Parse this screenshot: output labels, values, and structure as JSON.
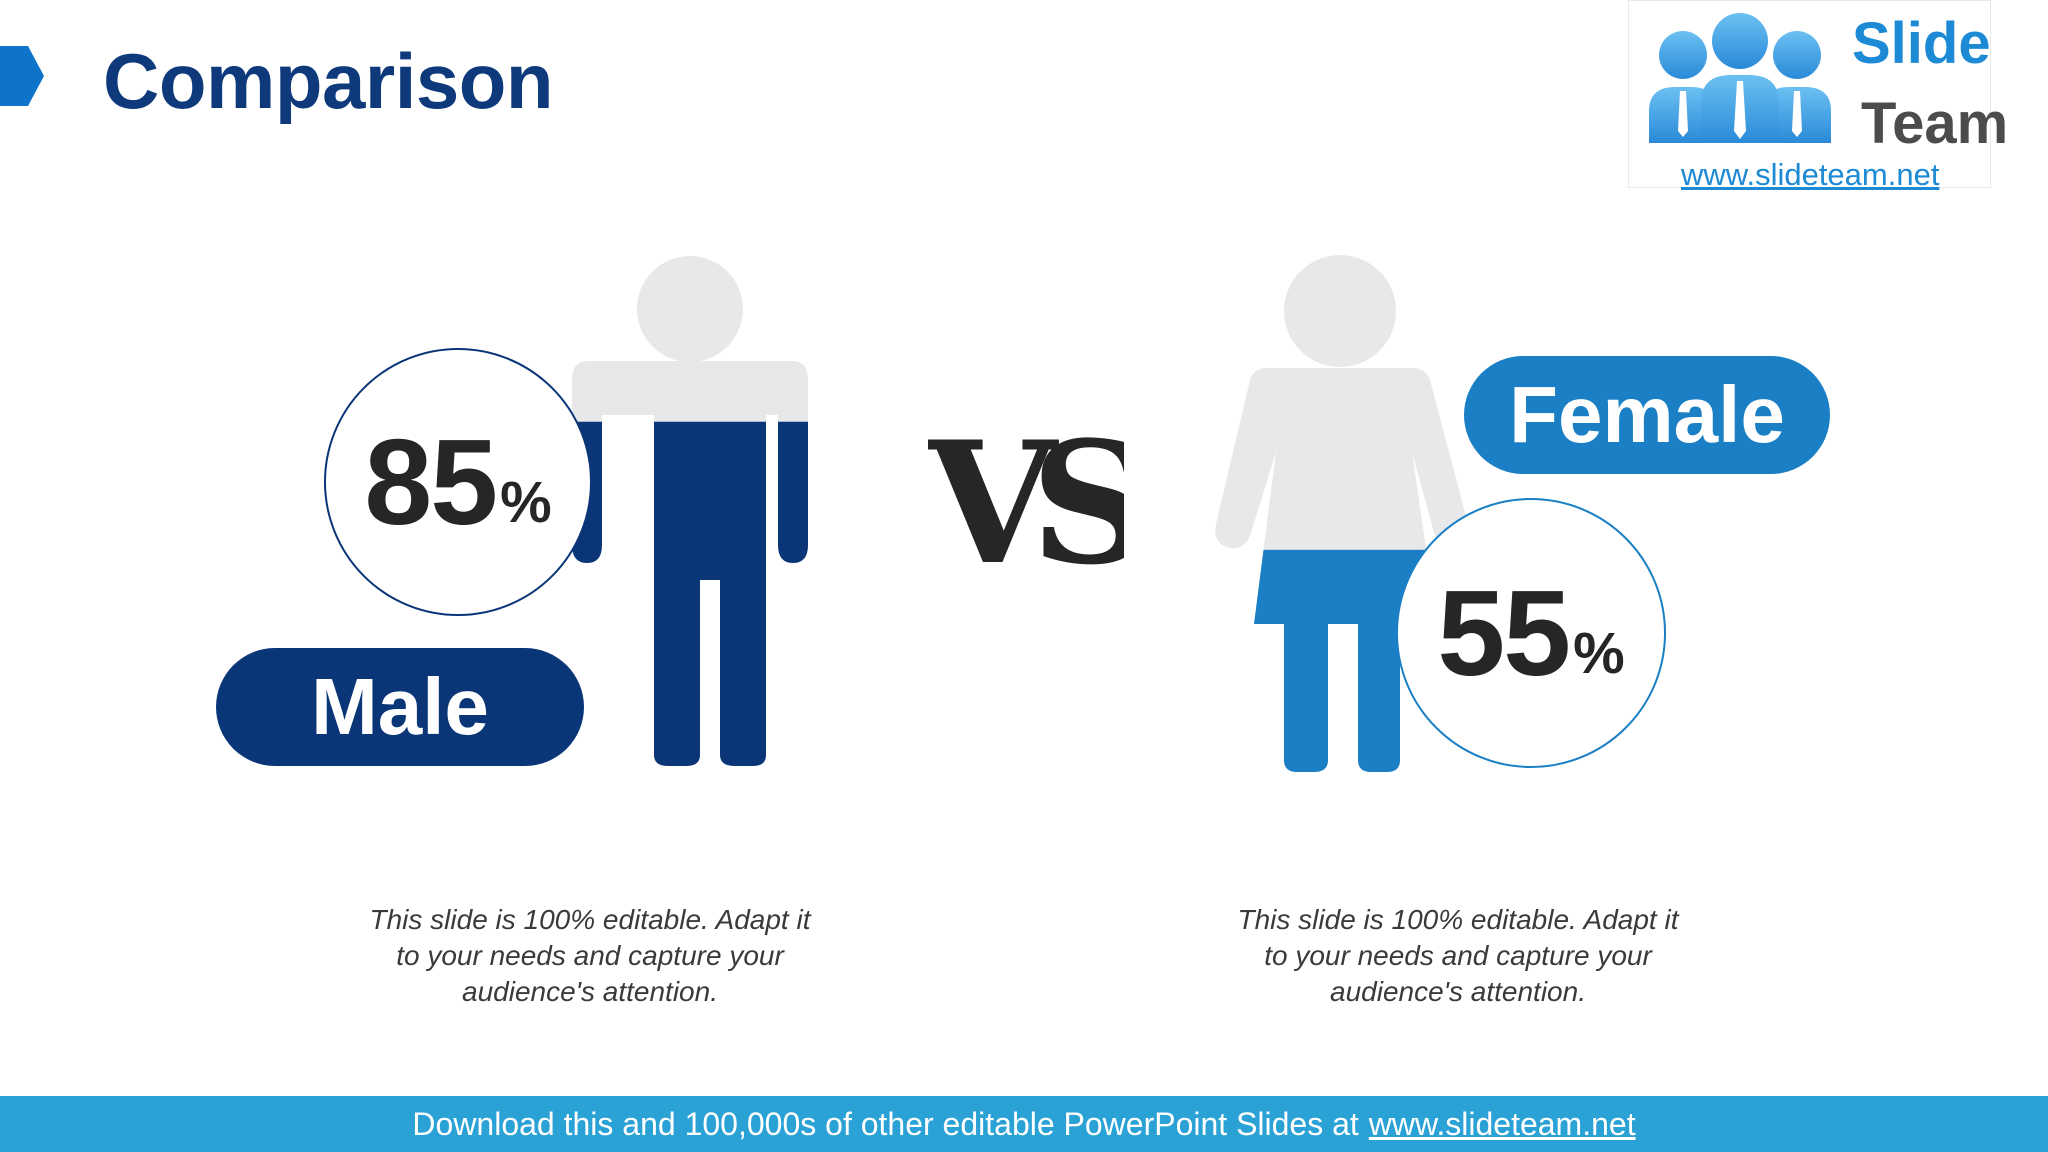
{
  "slide": {
    "title": "Comparison",
    "vs_label": "VS"
  },
  "logo": {
    "word1": "Slide",
    "word2": "Team",
    "url": "www.slideteam.net"
  },
  "male": {
    "percent": "85",
    "percent_sign": "%",
    "label": "Male",
    "fill_fraction": 0.85,
    "description": "This slide is 100% editable. Adapt it to your needs and capture your audience's attention."
  },
  "female": {
    "percent": "55",
    "percent_sign": "%",
    "label": "Female",
    "fill_fraction": 0.55,
    "description": "This slide is 100% editable. Adapt it to your needs and capture your audience's attention."
  },
  "footer": {
    "text": "Download this and 100,000s of other editable PowerPoint Slides at",
    "link": "www.slideteam.net"
  },
  "colors": {
    "male": "#0a3678",
    "female": "#1a7fc4",
    "figure_empty": "#e8e7ea",
    "title": "#0e3a7c",
    "footer": "#2ba2d6"
  }
}
